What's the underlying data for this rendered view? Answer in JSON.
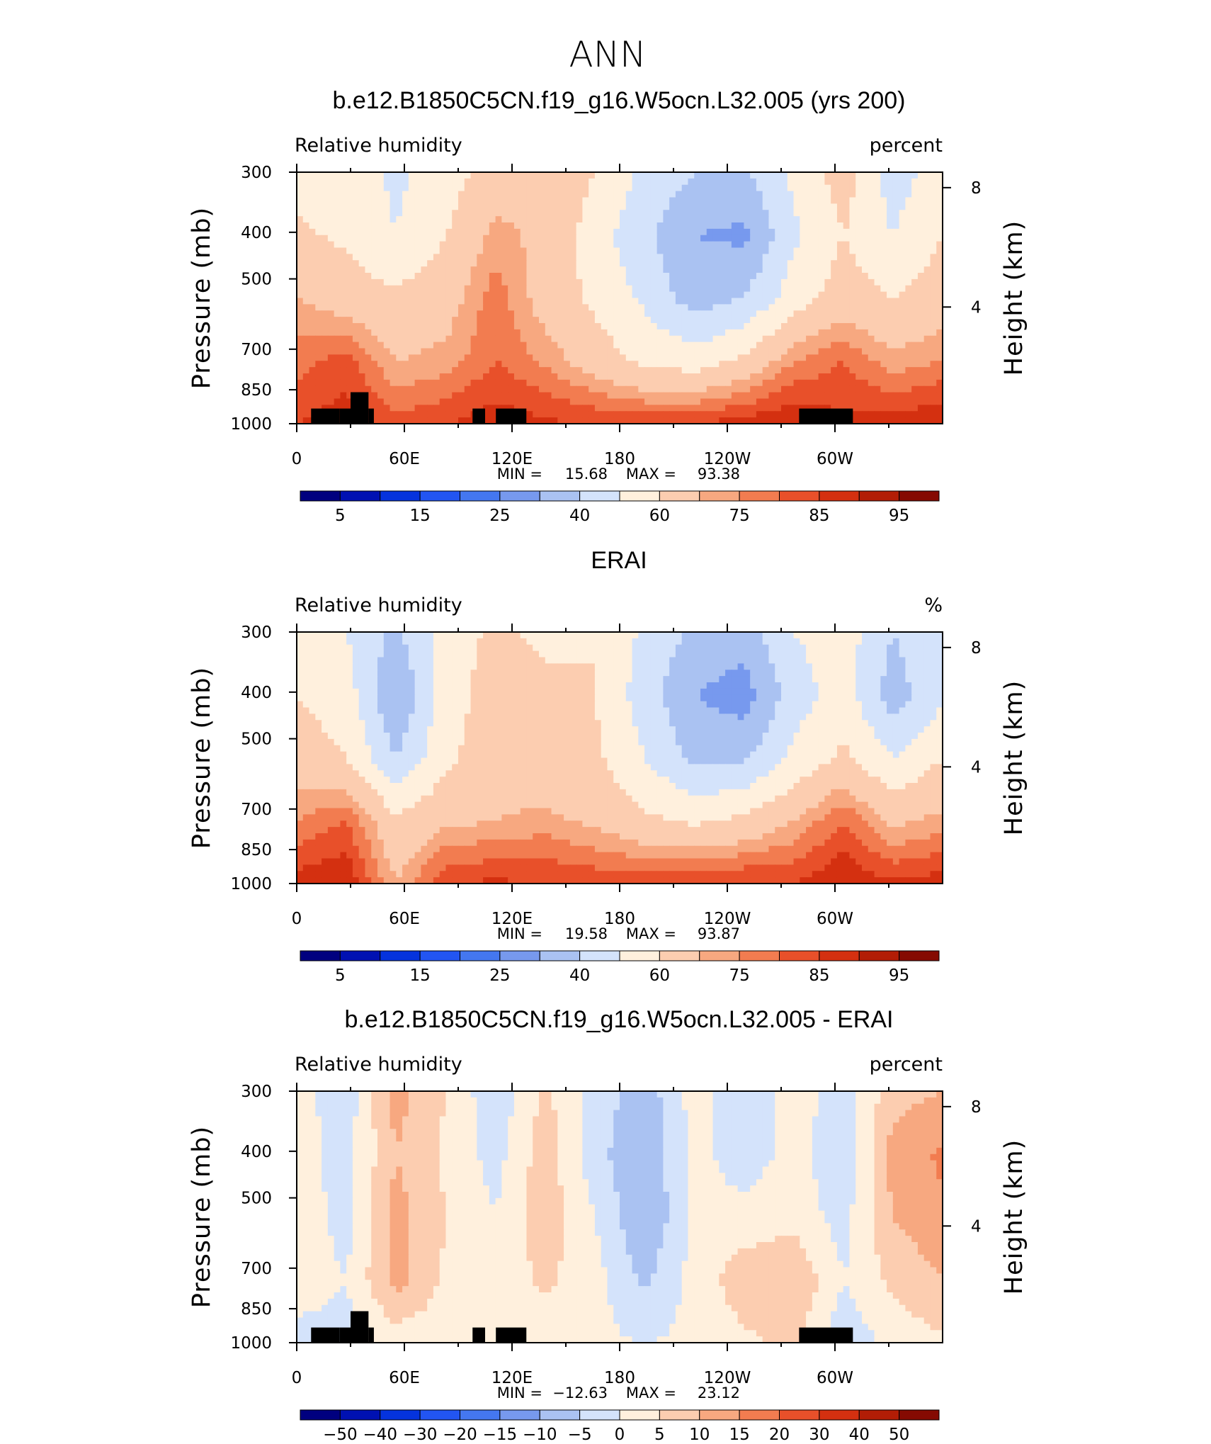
{
  "figure": {
    "title": "ANN",
    "colors": [
      "#00007f",
      "#0011b2",
      "#0533dd",
      "#2255f2",
      "#4477f0",
      "#7799ee",
      "#aac2f2",
      "#d4e3fb",
      "#fff0dd",
      "#fccdb0",
      "#f7a880",
      "#f27c50",
      "#e8502a",
      "#d43010",
      "#b21d06",
      "#850a02"
    ]
  },
  "chart_data": [
    {
      "type": "heatmap",
      "title": "b.e12.B1850C5CN.f19_g16.W5ocn.L32.005 (yrs 200)",
      "variable": "Relative humidity",
      "units": "percent",
      "ylabel": "Pressure (mb)",
      "ylabel_right": "Height (km)",
      "yticks": [
        "300",
        "400",
        "500",
        "700",
        "850",
        "1000"
      ],
      "yticks_right": [
        "8",
        "4"
      ],
      "xticks": [
        "0",
        "60E",
        "120E",
        "180",
        "120W",
        "60W"
      ],
      "xlim": [
        0,
        360
      ],
      "min_label": "MIN =",
      "min_value": "15.68",
      "max_label": "MAX =",
      "max_value": "93.38",
      "colorbar_labels": [
        "5",
        "15",
        "25",
        "40",
        "60",
        "75",
        "85",
        "95"
      ],
      "levels": [
        5,
        10,
        15,
        20,
        25,
        30,
        40,
        50,
        60,
        70,
        75,
        80,
        85,
        90,
        95
      ],
      "field": [
        [
          55,
          55,
          48,
          55,
          65,
          70,
          60,
          48,
          40,
          38,
          52,
          65,
          45,
          55
        ],
        [
          62,
          58,
          50,
          60,
          72,
          68,
          55,
          42,
          30,
          28,
          48,
          60,
          50,
          60
        ],
        [
          70,
          65,
          62,
          66,
          78,
          66,
          58,
          48,
          35,
          40,
          55,
          65,
          60,
          65
        ],
        [
          78,
          82,
          70,
          72,
          80,
          74,
          65,
          58,
          55,
          62,
          75,
          80,
          72,
          75
        ],
        [
          85,
          88,
          82,
          85,
          88,
          86,
          85,
          84,
          85,
          88,
          90,
          86,
          88,
          90
        ]
      ],
      "terrain": [
        {
          "lon_start": 8,
          "lon_end": 24,
          "p_top": 930
        },
        {
          "lon_start": 24,
          "lon_end": 30,
          "p_top": 930
        },
        {
          "lon_start": 30,
          "lon_end": 40,
          "p_top": 860
        },
        {
          "lon_start": 40,
          "lon_end": 43,
          "p_top": 930
        },
        {
          "lon_start": 98,
          "lon_end": 105,
          "p_top": 930
        },
        {
          "lon_start": 111,
          "lon_end": 128,
          "p_top": 930
        },
        {
          "lon_start": 280,
          "lon_end": 310,
          "p_top": 930
        }
      ]
    },
    {
      "type": "heatmap",
      "title": "ERAI",
      "variable": "Relative humidity",
      "units": "%",
      "ylabel": "Pressure (mb)",
      "ylabel_right": "Height (km)",
      "yticks": [
        "300",
        "400",
        "500",
        "700",
        "850",
        "1000"
      ],
      "yticks_right": [
        "8",
        "4"
      ],
      "xticks": [
        "0",
        "60E",
        "120E",
        "180",
        "120W",
        "60W"
      ],
      "xlim": [
        0,
        360
      ],
      "min_label": "MIN =",
      "min_value": "19.58",
      "max_label": "MAX =",
      "max_value": "93.87",
      "colorbar_labels": [
        "5",
        "15",
        "25",
        "40",
        "60",
        "75",
        "85",
        "95"
      ],
      "levels": [
        5,
        10,
        15,
        20,
        25,
        30,
        40,
        50,
        60,
        70,
        75,
        80,
        85,
        90,
        95
      ],
      "field": [
        [
          55,
          50,
          38,
          55,
          62,
          58,
          60,
          48,
          38,
          35,
          50,
          55,
          40,
          50
        ],
        [
          60,
          55,
          30,
          55,
          65,
          62,
          60,
          45,
          30,
          25,
          45,
          55,
          35,
          48
        ],
        [
          65,
          60,
          40,
          58,
          66,
          62,
          62,
          50,
          38,
          38,
          52,
          62,
          50,
          60
        ],
        [
          75,
          80,
          62,
          68,
          70,
          72,
          68,
          62,
          58,
          62,
          70,
          80,
          68,
          72
        ],
        [
          88,
          90,
          70,
          85,
          86,
          85,
          84,
          84,
          85,
          86,
          85,
          90,
          86,
          88
        ]
      ],
      "terrain": []
    },
    {
      "type": "heatmap",
      "title": "b.e12.B1850C5CN.f19_g16.W5ocn.L32.005 - ERAI",
      "variable": "Relative humidity",
      "units": "percent",
      "ylabel": "Pressure (mb)",
      "ylabel_right": "Height (km)",
      "yticks": [
        "300",
        "400",
        "500",
        "700",
        "850",
        "1000"
      ],
      "yticks_right": [
        "8",
        "4"
      ],
      "xticks": [
        "0",
        "60E",
        "120E",
        "180",
        "120W",
        "60W"
      ],
      "xlim": [
        0,
        360
      ],
      "min_label": "MIN =",
      "min_value": "−12.63",
      "max_label": "MAX =",
      "max_value": "23.12",
      "colorbar_labels": [
        "−50",
        "−40",
        "−30",
        "−20",
        "−15",
        "−10",
        "−5",
        "0",
        "5",
        "10",
        "15",
        "20",
        "30",
        "40",
        "50"
      ],
      "levels": [
        -50,
        -40,
        -30,
        -20,
        -15,
        -10,
        -5,
        0,
        5,
        10,
        15,
        20,
        30,
        40,
        50
      ],
      "field": [
        [
          2,
          -3,
          12,
          5,
          -4,
          6,
          -2,
          -8,
          2,
          -4,
          3,
          -3,
          8,
          10
        ],
        [
          2,
          -2,
          10,
          4,
          -2,
          8,
          -3,
          -10,
          2,
          -3,
          2,
          -4,
          12,
          16
        ],
        [
          3,
          -2,
          12,
          5,
          0,
          8,
          0,
          -10,
          1,
          2,
          3,
          -2,
          10,
          14
        ],
        [
          3,
          0,
          12,
          4,
          2,
          6,
          2,
          -6,
          2,
          8,
          10,
          0,
          6,
          10
        ],
        [
          -2,
          -2,
          2,
          2,
          0,
          2,
          1,
          0,
          1,
          4,
          6,
          -4,
          2,
          4
        ]
      ],
      "terrain": [
        {
          "lon_start": 8,
          "lon_end": 24,
          "p_top": 930
        },
        {
          "lon_start": 24,
          "lon_end": 30,
          "p_top": 930
        },
        {
          "lon_start": 30,
          "lon_end": 40,
          "p_top": 860
        },
        {
          "lon_start": 40,
          "lon_end": 43,
          "p_top": 930
        },
        {
          "lon_start": 98,
          "lon_end": 105,
          "p_top": 930
        },
        {
          "lon_start": 111,
          "lon_end": 128,
          "p_top": 930
        },
        {
          "lon_start": 280,
          "lon_end": 310,
          "p_top": 930
        }
      ]
    }
  ]
}
